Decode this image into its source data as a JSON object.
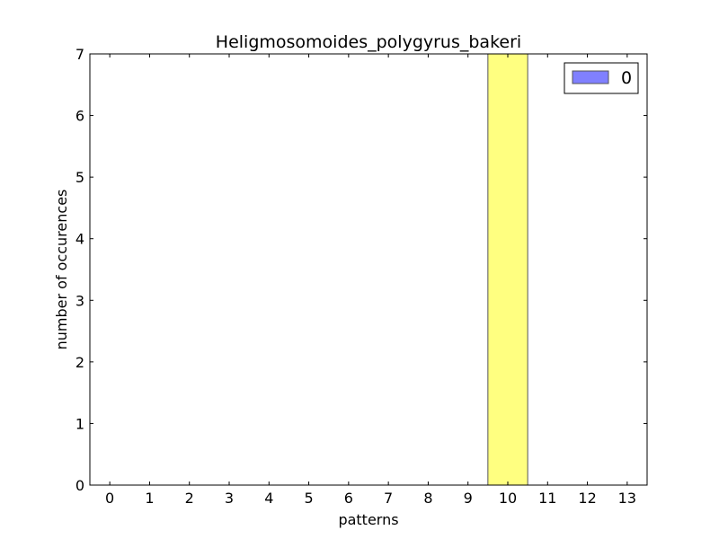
{
  "chart_data": {
    "type": "bar",
    "title": "Heligmosomoides_polygyrus_bakeri",
    "xlabel": "patterns",
    "ylabel": "number of occurences",
    "categories": [
      "0",
      "1",
      "2",
      "3",
      "4",
      "5",
      "6",
      "7",
      "8",
      "9",
      "10",
      "11",
      "12",
      "13"
    ],
    "yticks": [
      "0",
      "1",
      "2",
      "3",
      "4",
      "5",
      "6",
      "7"
    ],
    "ylim": [
      0,
      7
    ],
    "xlim": [
      -0.5,
      13.5
    ],
    "series": [
      {
        "name": "0",
        "values": [
          0,
          0,
          0,
          0,
          0,
          0,
          0,
          0,
          0,
          0,
          7,
          0,
          0,
          0
        ],
        "color": "#8080ff"
      }
    ],
    "bar_colors": {
      "10": "#ffff80"
    },
    "legend": "top-right",
    "grid": false
  }
}
